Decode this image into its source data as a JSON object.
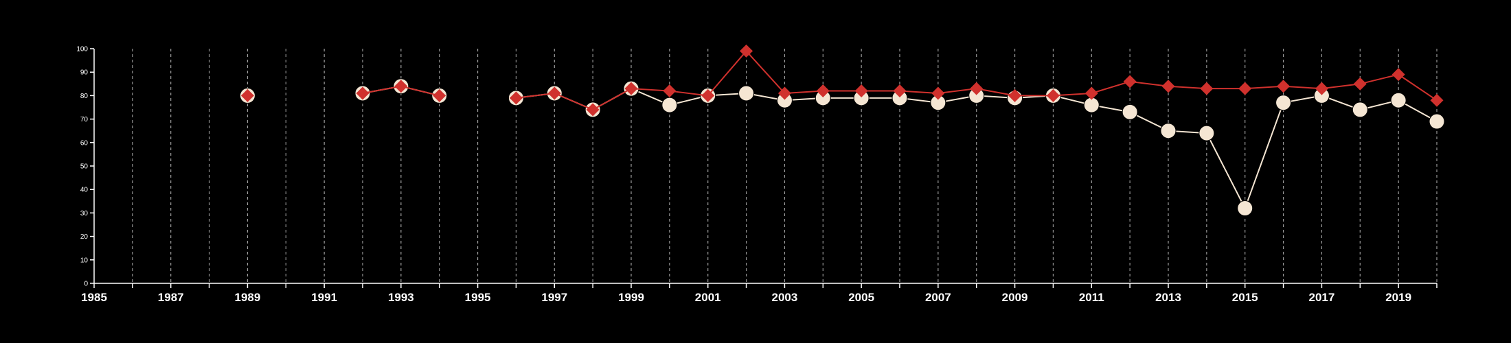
{
  "chart_data": {
    "type": "line",
    "title": "",
    "xlabel": "",
    "ylabel": "",
    "xlim": [
      1985,
      2020
    ],
    "ylim": [
      0,
      100
    ],
    "y_ticks": [
      0,
      10,
      20,
      30,
      40,
      50,
      60,
      70,
      80,
      90,
      100
    ],
    "x_tick_labels": [
      1985,
      1987,
      1989,
      1991,
      1993,
      1995,
      1997,
      1999,
      2001,
      2003,
      2005,
      2007,
      2009,
      2011,
      2013,
      2015,
      2017,
      2019
    ],
    "grid": "vertical dashed at every year",
    "background": "#000000",
    "series": [
      {
        "marker": "circle",
        "color": "#f5e6d3",
        "points": [
          [
            1989,
            80
          ],
          [
            1992,
            81
          ],
          [
            1993,
            84
          ],
          [
            1994,
            80
          ],
          [
            1996,
            79
          ],
          [
            1997,
            81
          ],
          [
            1998,
            74
          ],
          [
            1999,
            83
          ],
          [
            2000,
            76
          ],
          [
            2001,
            80
          ],
          [
            2002,
            81
          ],
          [
            2003,
            78
          ],
          [
            2004,
            79
          ],
          [
            2005,
            79
          ],
          [
            2006,
            79
          ],
          [
            2007,
            77
          ],
          [
            2008,
            80
          ],
          [
            2009,
            79
          ],
          [
            2010,
            80
          ],
          [
            2011,
            76
          ],
          [
            2012,
            73
          ],
          [
            2013,
            65
          ],
          [
            2014,
            64
          ],
          [
            2015,
            32
          ],
          [
            2016,
            77
          ],
          [
            2017,
            80
          ],
          [
            2018,
            74
          ],
          [
            2019,
            78
          ],
          [
            2020,
            69
          ]
        ]
      },
      {
        "marker": "diamond",
        "color": "#d0312d",
        "points": [
          [
            1989,
            80
          ],
          [
            1992,
            81
          ],
          [
            1993,
            84
          ],
          [
            1994,
            80
          ],
          [
            1996,
            79
          ],
          [
            1997,
            81
          ],
          [
            1998,
            74
          ],
          [
            1999,
            83
          ],
          [
            2000,
            82
          ],
          [
            2001,
            80
          ],
          [
            2002,
            99
          ],
          [
            2003,
            81
          ],
          [
            2004,
            82
          ],
          [
            2005,
            82
          ],
          [
            2006,
            82
          ],
          [
            2007,
            81
          ],
          [
            2008,
            83
          ],
          [
            2009,
            80
          ],
          [
            2010,
            80
          ],
          [
            2011,
            81
          ],
          [
            2012,
            86
          ],
          [
            2013,
            84
          ],
          [
            2014,
            83
          ],
          [
            2015,
            83
          ],
          [
            2016,
            84
          ],
          [
            2017,
            83
          ],
          [
            2018,
            85
          ],
          [
            2019,
            89
          ],
          [
            2020,
            78
          ]
        ]
      }
    ]
  }
}
